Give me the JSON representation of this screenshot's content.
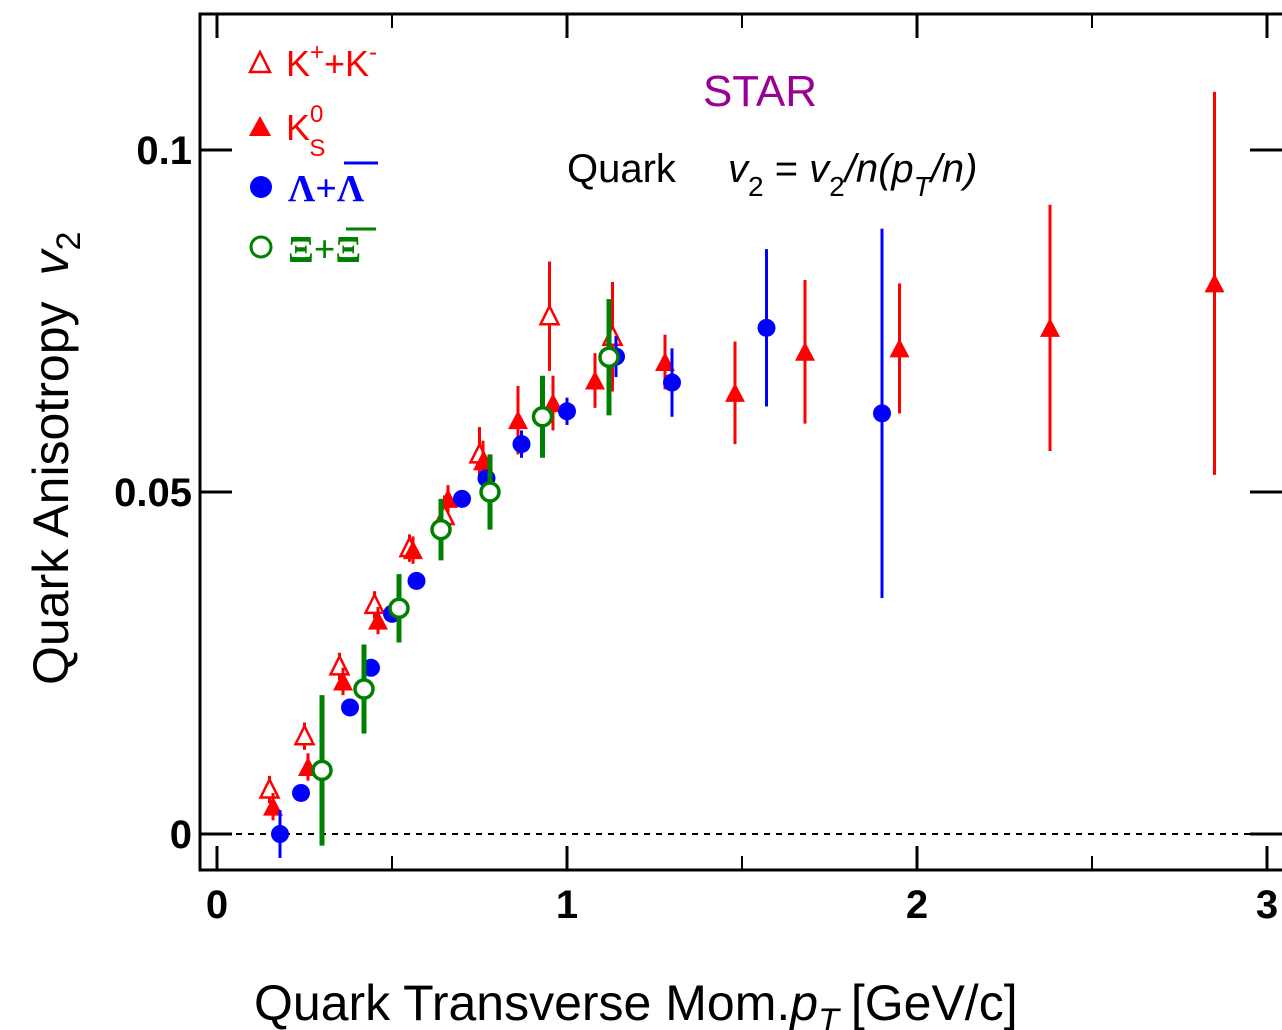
{
  "chart_data": {
    "type": "scatter",
    "xlabel": "Quark Transverse Mom. p_T [GeV/c]",
    "xlabel_main": "Quark Transverse Mom.",
    "xlabel_var": "p",
    "xlabel_sub": "T",
    "xlabel_unit": "[GeV/c]",
    "ylabel_main": "Quark Anisotropy",
    "ylabel_var": "v",
    "ylabel_sub": "2",
    "xlim": [
      -0.05,
      3.05
    ],
    "ylim": [
      -0.005,
      0.12
    ],
    "x_ticks": [
      0,
      1,
      2,
      3
    ],
    "x_tick_labels": [
      "0",
      "1",
      "2",
      "3"
    ],
    "y_ticks": [
      0,
      0.05,
      0.1
    ],
    "y_tick_labels": [
      "0",
      "0.05",
      "0.1"
    ],
    "reference_line_y": 0,
    "grid": false,
    "legend_position": "top-left",
    "annotations": {
      "experiment": "STAR",
      "formula_prefix": "Quark",
      "formula": "v2 = v2/n(pT/n)"
    },
    "series": [
      {
        "name": "K⁺+K⁻",
        "legend_parts": [
          "K",
          "+",
          "+K",
          "-"
        ],
        "marker": "triangle-open",
        "color": "#ff0000",
        "points": [
          {
            "x": 0.15,
            "y": 0.0065,
            "err": 0.002
          },
          {
            "x": 0.25,
            "y": 0.0143,
            "err": 0.002
          },
          {
            "x": 0.35,
            "y": 0.0245,
            "err": 0.002
          },
          {
            "x": 0.45,
            "y": 0.0335,
            "err": 0.002
          },
          {
            "x": 0.55,
            "y": 0.0418,
            "err": 0.002
          },
          {
            "x": 0.65,
            "y": 0.0465,
            "err": 0.003
          },
          {
            "x": 0.75,
            "y": 0.0555,
            "err": 0.004
          },
          {
            "x": 0.95,
            "y": 0.0757,
            "err": 0.008
          },
          {
            "x": 1.13,
            "y": 0.0727,
            "err": 0.008
          }
        ]
      },
      {
        "name": "K⁰S",
        "legend_parts": [
          "K",
          "0",
          "S"
        ],
        "marker": "triangle-filled",
        "color": "#ff0000",
        "points": [
          {
            "x": 0.16,
            "y": 0.004,
            "err": 0.002
          },
          {
            "x": 0.26,
            "y": 0.0098,
            "err": 0.002
          },
          {
            "x": 0.36,
            "y": 0.0223,
            "err": 0.002
          },
          {
            "x": 0.46,
            "y": 0.0312,
            "err": 0.002
          },
          {
            "x": 0.56,
            "y": 0.0415,
            "err": 0.002
          },
          {
            "x": 0.66,
            "y": 0.049,
            "err": 0.002
          },
          {
            "x": 0.76,
            "y": 0.0545,
            "err": 0.003
          },
          {
            "x": 0.86,
            "y": 0.0605,
            "err": 0.005
          },
          {
            "x": 0.96,
            "y": 0.063,
            "err": 0.004
          },
          {
            "x": 1.08,
            "y": 0.0663,
            "err": 0.004
          },
          {
            "x": 1.28,
            "y": 0.069,
            "err": 0.004
          },
          {
            "x": 1.48,
            "y": 0.0645,
            "err": 0.0075
          },
          {
            "x": 1.68,
            "y": 0.0705,
            "err": 0.0105
          },
          {
            "x": 1.95,
            "y": 0.071,
            "err": 0.0095
          },
          {
            "x": 2.38,
            "y": 0.074,
            "err": 0.018
          },
          {
            "x": 2.85,
            "y": 0.0805,
            "err": 0.028
          }
        ]
      },
      {
        "name": "Λ+Λ̄",
        "legend_parts": [
          "Λ",
          "+",
          "Λ"
        ],
        "marker": "circle-filled",
        "color": "#0000ff",
        "points": [
          {
            "x": 0.18,
            "y": 0.0,
            "err": 0.0035
          },
          {
            "x": 0.24,
            "y": 0.006,
            "err": 0.001
          },
          {
            "x": 0.3,
            "y": 0.0095,
            "err": 0.001
          },
          {
            "x": 0.38,
            "y": 0.0185,
            "err": 0.001
          },
          {
            "x": 0.44,
            "y": 0.0243,
            "err": 0.001
          },
          {
            "x": 0.5,
            "y": 0.0322,
            "err": 0.001
          },
          {
            "x": 0.57,
            "y": 0.037,
            "err": 0.001
          },
          {
            "x": 0.64,
            "y": 0.0445,
            "err": 0.001
          },
          {
            "x": 0.7,
            "y": 0.049,
            "err": 0.001
          },
          {
            "x": 0.77,
            "y": 0.052,
            "err": 0.001
          },
          {
            "x": 0.87,
            "y": 0.057,
            "err": 0.002
          },
          {
            "x": 1.0,
            "y": 0.0618,
            "err": 0.002
          },
          {
            "x": 1.14,
            "y": 0.0698,
            "err": 0.003
          },
          {
            "x": 1.3,
            "y": 0.066,
            "err": 0.005
          },
          {
            "x": 1.57,
            "y": 0.074,
            "err": 0.0115
          },
          {
            "x": 1.9,
            "y": 0.0615,
            "err": 0.027
          }
        ]
      },
      {
        "name": "Ξ+Ξ̄",
        "legend_parts": [
          "Ξ",
          "+",
          "Ξ"
        ],
        "marker": "circle-open",
        "color": "#008000",
        "points": [
          {
            "x": 0.3,
            "y": 0.0093,
            "err": 0.011
          },
          {
            "x": 0.42,
            "y": 0.0212,
            "err": 0.0065
          },
          {
            "x": 0.52,
            "y": 0.033,
            "err": 0.005
          },
          {
            "x": 0.64,
            "y": 0.0445,
            "err": 0.0045
          },
          {
            "x": 0.78,
            "y": 0.05,
            "err": 0.0055
          },
          {
            "x": 0.93,
            "y": 0.061,
            "err": 0.006
          },
          {
            "x": 1.12,
            "y": 0.0697,
            "err": 0.0085
          }
        ]
      }
    ]
  }
}
